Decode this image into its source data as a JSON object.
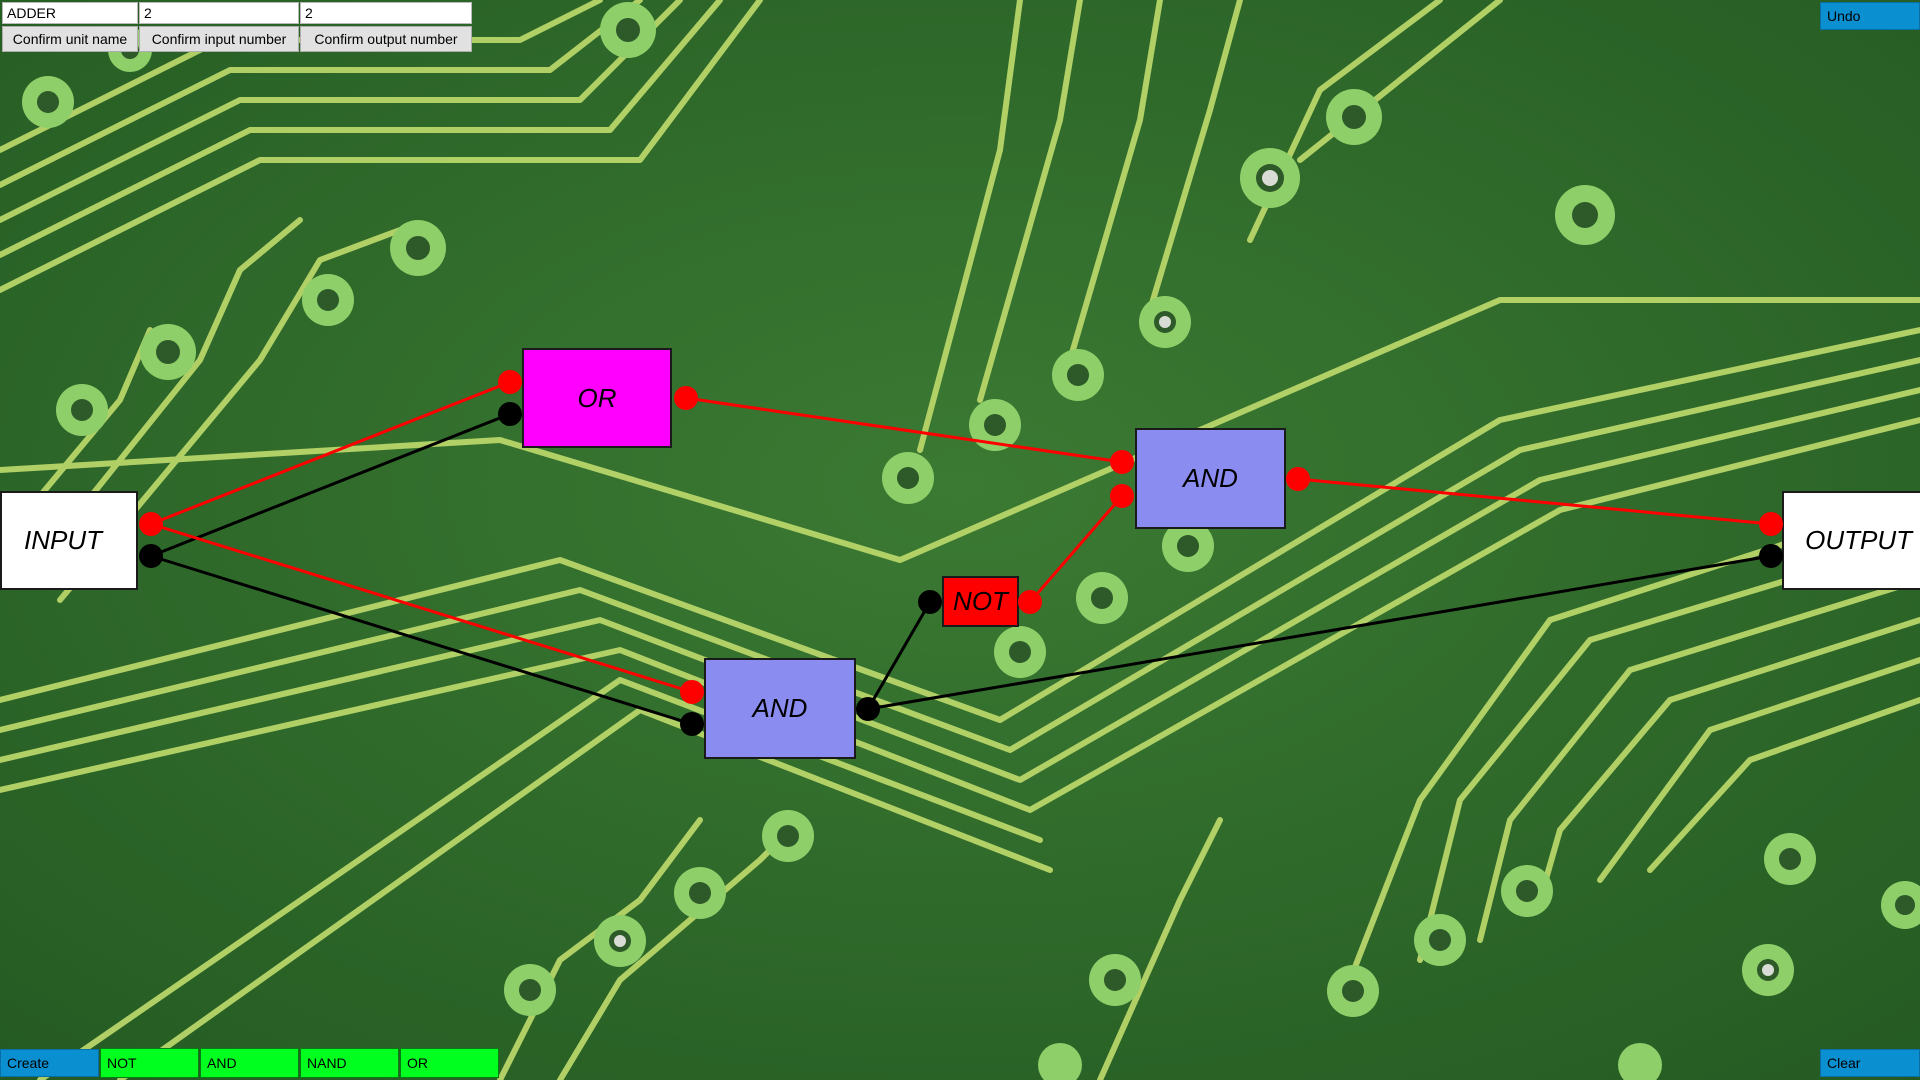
{
  "toolbar": {
    "unit_name_value": "ADDER",
    "input_number_value": "2",
    "output_number_value": "2",
    "confirm_unit_name_label": "Confirm unit name",
    "confirm_input_number_label": "Confirm input number",
    "confirm_output_number_label": "Confirm output number",
    "undo_label": "Undo"
  },
  "palette": {
    "create_label": "Create",
    "gates": [
      "NOT",
      "AND",
      "NAND",
      "OR"
    ],
    "clear_label": "Clear"
  },
  "circuit": {
    "input_label": "INPUT",
    "output_label": "OUTPUT",
    "gates": [
      {
        "id": "or-1",
        "label": "OR"
      },
      {
        "id": "and-1",
        "label": "AND"
      },
      {
        "id": "not-1",
        "label": "NOT"
      },
      {
        "id": "and-2",
        "label": "AND"
      }
    ]
  },
  "colors": {
    "board_green": "#2f6b2a",
    "trace_yellow": "#b8d66a",
    "pad_green": "#8fcf6a",
    "button_blue": "#0a8fd1",
    "gate_button_green": "#00ff1e",
    "or_gate": "#ff00ff",
    "and_gate": "#8a8cf0",
    "not_gate": "#ff0000",
    "wire_on": "#ff0000",
    "wire_off": "#000000"
  }
}
